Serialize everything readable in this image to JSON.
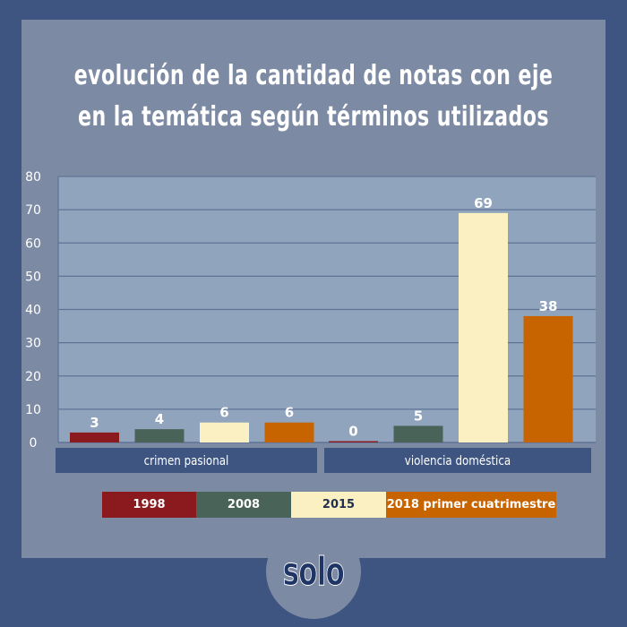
{
  "chart_data": {
    "type": "bar",
    "title_lines": [
      "evolución de la cantidad de notas con eje",
      "en la temática según términos utilizados"
    ],
    "categories": [
      "crimen pasional",
      "violencia doméstica"
    ],
    "series": [
      {
        "name": "1998",
        "values": [
          3,
          0
        ],
        "color": "#8b1a1e",
        "text_color": "#ffffff"
      },
      {
        "name": "2008",
        "values": [
          4,
          5
        ],
        "color": "#4a6358",
        "text_color": "#ffffff"
      },
      {
        "name": "2015",
        "values": [
          6,
          69
        ],
        "color": "#fbf0c2",
        "text_color": "#1f2f4f"
      },
      {
        "name": "2018 primer cuatrimestre",
        "values": [
          6,
          38
        ],
        "color": "#c86400",
        "text_color": "#ffffff"
      }
    ],
    "ylim": [
      0,
      80
    ],
    "yticks": [
      0,
      10,
      20,
      30,
      40,
      50,
      60,
      70,
      80
    ],
    "grid": true,
    "legend_position": "bottom",
    "xlabel": "",
    "ylabel": ""
  },
  "colors": {
    "background": "#3d5580",
    "panel": "#7d8aa3",
    "plot_area": "#90a4bd",
    "category_band": "#3d5580",
    "gridline": "#5f7396"
  },
  "logo": {
    "text": "solo"
  }
}
